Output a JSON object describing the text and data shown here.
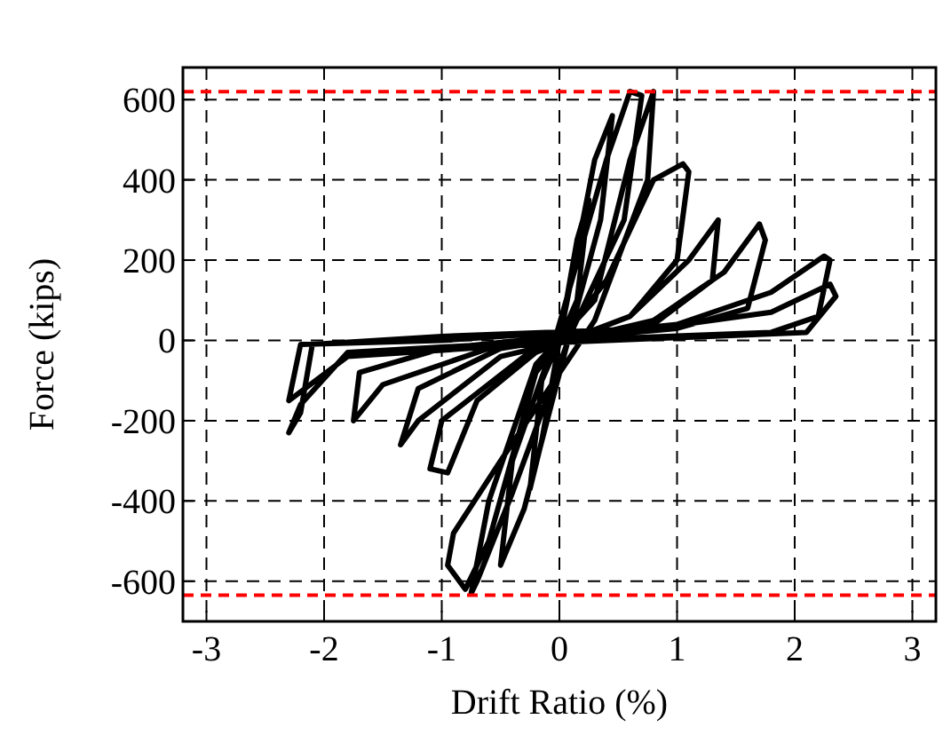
{
  "chart_data": {
    "type": "line",
    "xlabel": "Drift Ratio (%)",
    "ylabel": "Force (kips)",
    "xlim": [
      -3.2,
      3.2
    ],
    "ylim": [
      -700,
      680
    ],
    "xticks": [
      -3,
      -2,
      -1,
      0,
      1,
      2,
      3
    ],
    "yticks": [
      -600,
      -400,
      -200,
      0,
      200,
      400,
      600
    ],
    "grid": true,
    "line_style": "solid",
    "marker": "none",
    "series": [
      {
        "color": "#000000",
        "x": [
          0,
          0.15,
          0.25,
          0.15,
          0,
          -0.15,
          -0.25,
          -0.15,
          0,
          0.3,
          0.45,
          0.35,
          0.1,
          -0.3,
          -0.5,
          -0.4,
          -0.05,
          0.4,
          0.6,
          0.7,
          0.55,
          0.1,
          -0.4,
          -0.7,
          -0.75,
          -0.6,
          -0.2,
          0.3,
          0.6,
          0.8,
          0.75,
          0.3,
          -0.5,
          -0.9,
          -0.95,
          -0.8,
          -0.6,
          -0.2,
          0.4,
          0.8,
          1.05,
          1.1,
          1.0,
          0.6,
          -0.3,
          -1.0,
          -1.1,
          -0.95,
          -0.7,
          -0.2,
          0.6,
          1.1,
          1.35,
          1.3,
          0.8,
          -0.5,
          -1.2,
          -1.35,
          -1.2,
          -0.5,
          0.8,
          1.4,
          1.7,
          1.75,
          1.6,
          1.0,
          -0.5,
          -1.5,
          -1.75,
          -1.7,
          -1.0,
          1.0,
          1.8,
          2.25,
          2.3,
          2.2,
          1.8,
          0,
          -1.8,
          -2.2,
          -2.3,
          -2.2,
          -2.1,
          -1.0,
          0.8,
          1.8,
          2.3,
          2.35,
          2.1,
          0,
          -1.8,
          -2.3,
          -2.2,
          -1.0,
          0
        ],
        "values": [
          0,
          250,
          350,
          100,
          0,
          -250,
          -370,
          -100,
          0,
          450,
          560,
          300,
          30,
          -420,
          -560,
          -300,
          -10,
          450,
          620,
          610,
          300,
          20,
          -380,
          -600,
          -630,
          -400,
          -60,
          100,
          450,
          620,
          400,
          50,
          -300,
          -480,
          -560,
          -620,
          -500,
          -80,
          150,
          400,
          440,
          420,
          200,
          60,
          -40,
          -200,
          -320,
          -330,
          -150,
          -30,
          60,
          200,
          300,
          150,
          40,
          -20,
          -120,
          -260,
          -200,
          -40,
          50,
          170,
          290,
          250,
          80,
          30,
          -10,
          -110,
          -200,
          -80,
          -20,
          40,
          120,
          210,
          200,
          60,
          20,
          0,
          -30,
          -160,
          -230,
          -180,
          -10,
          10,
          30,
          70,
          140,
          110,
          20,
          -5,
          -40,
          -150,
          -10,
          0,
          20
        ]
      }
    ],
    "ref_lines": [
      {
        "axis": "y",
        "value": 620,
        "color": "#ff0000",
        "line_style": "dashed"
      },
      {
        "axis": "y",
        "value": -635,
        "color": "#ff0000",
        "line_style": "dashed"
      }
    ]
  }
}
